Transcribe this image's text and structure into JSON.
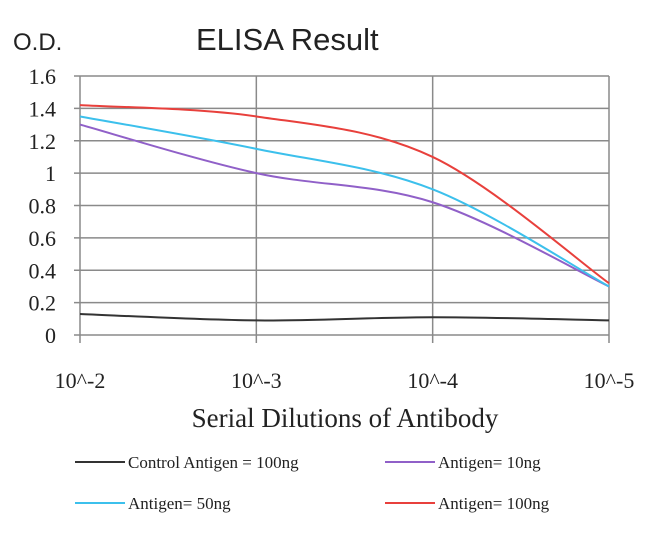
{
  "chart_data": {
    "type": "line",
    "title": "ELISA Result",
    "ylabel": "O.D.",
    "xlabel": "Serial Dilutions of Antibody",
    "categories": [
      "10^-2",
      "10^-3",
      "10^-4",
      "10^-5"
    ],
    "ylim": [
      0,
      1.6
    ],
    "yticks": [
      "0",
      "0.2",
      "0.4",
      "0.6",
      "0.8",
      "1",
      "1.2",
      "1.4",
      "1.6"
    ],
    "grid": true,
    "legend_position": "bottom",
    "series": [
      {
        "name": "Control Antigen = 100ng",
        "color": "#333333",
        "values": [
          0.13,
          0.09,
          0.11,
          0.09
        ]
      },
      {
        "name": "Antigen= 10ng",
        "color": "#9060c8",
        "values": [
          1.3,
          1.0,
          0.82,
          0.3
        ]
      },
      {
        "name": "Antigen= 50ng",
        "color": "#3cc0ec",
        "values": [
          1.35,
          1.15,
          0.9,
          0.3
        ]
      },
      {
        "name": "Antigen= 100ng",
        "color": "#e8403c",
        "values": [
          1.42,
          1.35,
          1.1,
          0.32
        ]
      }
    ]
  }
}
